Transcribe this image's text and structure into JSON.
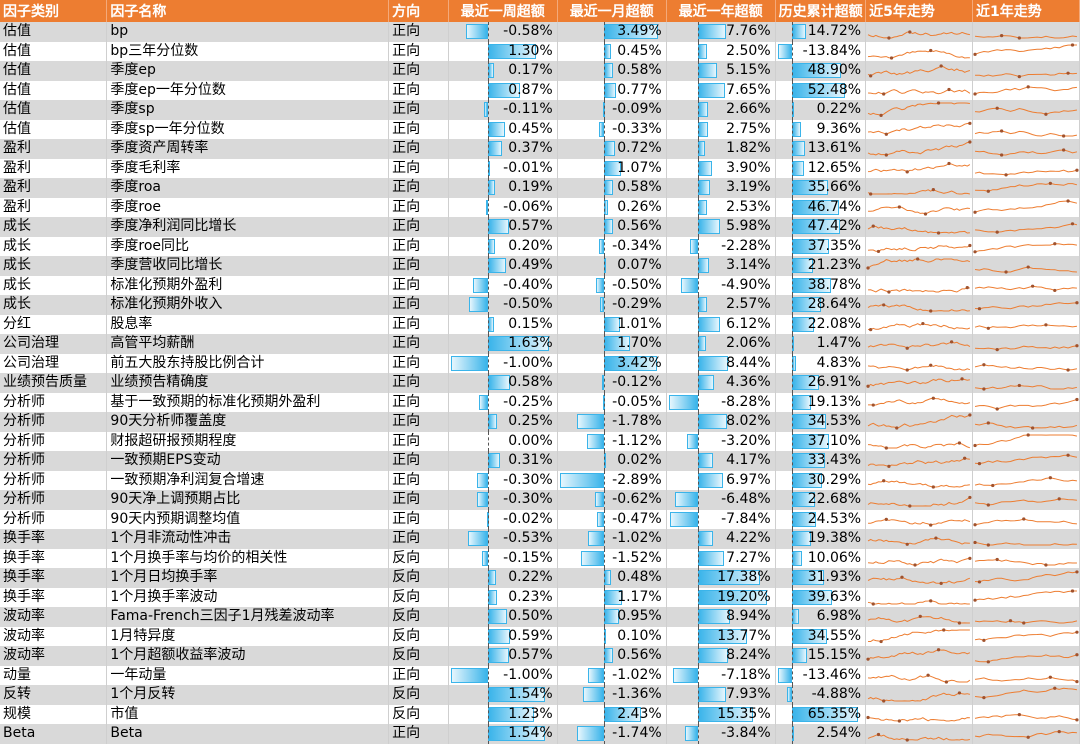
{
  "header": {
    "category": "因子类别",
    "name": "因子名称",
    "direction": "方向",
    "week": "最近一周超额",
    "month": "最近一月超额",
    "year": "最近一年超额",
    "history": "历史累计超额",
    "trend5y": "近5年走势",
    "trend1y": "近1年走势"
  },
  "colors": {
    "header_bg": "#ed7d31",
    "bar": "#3ab4ea",
    "sparkline": "#ed7d31",
    "row_stripe": "#d9d9d9"
  },
  "rows": [
    {
      "category": "估值",
      "name": "bp",
      "direction": "正向",
      "week": "-0.58%",
      "month": "3.49%",
      "year": "7.76%",
      "history": "14.72%"
    },
    {
      "category": "估值",
      "name": "bp三年分位数",
      "direction": "正向",
      "week": "1.30%",
      "month": "0.45%",
      "year": "2.50%",
      "history": "-13.84%"
    },
    {
      "category": "估值",
      "name": "季度ep",
      "direction": "正向",
      "week": "0.17%",
      "month": "0.58%",
      "year": "5.15%",
      "history": "48.90%"
    },
    {
      "category": "估值",
      "name": "季度ep一年分位数",
      "direction": "正向",
      "week": "0.87%",
      "month": "0.77%",
      "year": "7.65%",
      "history": "52.48%"
    },
    {
      "category": "估值",
      "name": "季度sp",
      "direction": "正向",
      "week": "-0.11%",
      "month": "-0.09%",
      "year": "2.66%",
      "history": "0.22%"
    },
    {
      "category": "估值",
      "name": "季度sp一年分位数",
      "direction": "正向",
      "week": "0.45%",
      "month": "-0.33%",
      "year": "2.75%",
      "history": "9.36%"
    },
    {
      "category": "盈利",
      "name": "季度资产周转率",
      "direction": "正向",
      "week": "0.37%",
      "month": "0.72%",
      "year": "1.82%",
      "history": "13.61%"
    },
    {
      "category": "盈利",
      "name": "季度毛利率",
      "direction": "正向",
      "week": "-0.01%",
      "month": "1.07%",
      "year": "3.90%",
      "history": "12.65%"
    },
    {
      "category": "盈利",
      "name": "季度roa",
      "direction": "正向",
      "week": "0.19%",
      "month": "0.58%",
      "year": "3.19%",
      "history": "35.66%"
    },
    {
      "category": "盈利",
      "name": "季度roe",
      "direction": "正向",
      "week": "-0.06%",
      "month": "0.26%",
      "year": "2.53%",
      "history": "46.74%"
    },
    {
      "category": "成长",
      "name": "季度净利润同比增长",
      "direction": "正向",
      "week": "0.57%",
      "month": "0.56%",
      "year": "5.98%",
      "history": "47.42%"
    },
    {
      "category": "成长",
      "name": "季度roe同比",
      "direction": "正向",
      "week": "0.20%",
      "month": "-0.34%",
      "year": "-2.28%",
      "history": "37.35%"
    },
    {
      "category": "成长",
      "name": "季度营收同比增长",
      "direction": "正向",
      "week": "0.49%",
      "month": "0.07%",
      "year": "3.14%",
      "history": "21.23%"
    },
    {
      "category": "成长",
      "name": "标准化预期外盈利",
      "direction": "正向",
      "week": "-0.40%",
      "month": "-0.50%",
      "year": "-4.90%",
      "history": "38.78%"
    },
    {
      "category": "成长",
      "name": "标准化预期外收入",
      "direction": "正向",
      "week": "-0.50%",
      "month": "-0.29%",
      "year": "2.57%",
      "history": "28.64%"
    },
    {
      "category": "分红",
      "name": "股息率",
      "direction": "正向",
      "week": "0.15%",
      "month": "1.01%",
      "year": "6.12%",
      "history": "22.08%"
    },
    {
      "category": "公司治理",
      "name": "高管平均薪酬",
      "direction": "正向",
      "week": "1.63%",
      "month": "1.70%",
      "year": "2.06%",
      "history": "1.47%"
    },
    {
      "category": "公司治理",
      "name": "前五大股东持股比例合计",
      "direction": "正向",
      "week": "-1.00%",
      "month": "3.42%",
      "year": "8.44%",
      "history": "4.83%"
    },
    {
      "category": "业绩预告质量",
      "name": "业绩预告精确度",
      "direction": "正向",
      "week": "0.58%",
      "month": "-0.12%",
      "year": "4.36%",
      "history": "26.91%"
    },
    {
      "category": "分析师",
      "name": "基于一致预期的标准化预期外盈利",
      "direction": "正向",
      "week": "-0.25%",
      "month": "-0.05%",
      "year": "-8.28%",
      "history": "19.13%"
    },
    {
      "category": "分析师",
      "name": "90天分析师覆盖度",
      "direction": "正向",
      "week": "0.25%",
      "month": "-1.78%",
      "year": "8.02%",
      "history": "34.53%"
    },
    {
      "category": "分析师",
      "name": "财报超研报预期程度",
      "direction": "正向",
      "week": "0.00%",
      "month": "-1.12%",
      "year": "-3.20%",
      "history": "37.10%"
    },
    {
      "category": "分析师",
      "name": "一致预期EPS变动",
      "direction": "正向",
      "week": "0.31%",
      "month": "0.02%",
      "year": "4.17%",
      "history": "33.43%"
    },
    {
      "category": "分析师",
      "name": "一致预期净利润复合增速",
      "direction": "正向",
      "week": "-0.30%",
      "month": "-2.89%",
      "year": "6.97%",
      "history": "30.29%"
    },
    {
      "category": "分析师",
      "name": "90天净上调预期占比",
      "direction": "正向",
      "week": "-0.30%",
      "month": "-0.62%",
      "year": "-6.48%",
      "history": "22.68%"
    },
    {
      "category": "分析师",
      "name": "90天内预期调整均值",
      "direction": "正向",
      "week": "-0.02%",
      "month": "-0.47%",
      "year": "-7.84%",
      "history": "24.53%"
    },
    {
      "category": "换手率",
      "name": "1个月非流动性冲击",
      "direction": "正向",
      "week": "-0.53%",
      "month": "-1.02%",
      "year": "4.22%",
      "history": "19.38%"
    },
    {
      "category": "换手率",
      "name": "1个月换手率与均价的相关性",
      "direction": "反向",
      "week": "-0.15%",
      "month": "-1.52%",
      "year": "7.27%",
      "history": "10.06%"
    },
    {
      "category": "换手率",
      "name": "1个月日均换手率",
      "direction": "反向",
      "week": "0.22%",
      "month": "0.48%",
      "year": "17.38%",
      "history": "31.93%"
    },
    {
      "category": "换手率",
      "name": "1个月换手率波动",
      "direction": "反向",
      "week": "0.23%",
      "month": "1.17%",
      "year": "19.20%",
      "history": "39.63%"
    },
    {
      "category": "波动率",
      "name": "Fama-French三因子1月残差波动率",
      "direction": "反向",
      "week": "0.50%",
      "month": "0.95%",
      "year": "8.94%",
      "history": "6.98%"
    },
    {
      "category": "波动率",
      "name": "1月特异度",
      "direction": "反向",
      "week": "0.59%",
      "month": "0.10%",
      "year": "13.77%",
      "history": "34.55%"
    },
    {
      "category": "波动率",
      "name": "1个月超额收益率波动",
      "direction": "反向",
      "week": "0.57%",
      "month": "0.56%",
      "year": "8.24%",
      "history": "15.15%"
    },
    {
      "category": "动量",
      "name": "一年动量",
      "direction": "正向",
      "week": "-1.00%",
      "month": "-1.02%",
      "year": "-7.18%",
      "history": "-13.46%"
    },
    {
      "category": "反转",
      "name": "1个月反转",
      "direction": "反向",
      "week": "1.54%",
      "month": "-1.36%",
      "year": "7.93%",
      "history": "-4.88%"
    },
    {
      "category": "规模",
      "name": "市值",
      "direction": "反向",
      "week": "1.23%",
      "month": "2.43%",
      "year": "15.35%",
      "history": "65.35%"
    },
    {
      "category": "Beta",
      "name": "Beta",
      "direction": "正向",
      "week": "1.54%",
      "month": "-1.74%",
      "year": "-3.84%",
      "history": "2.54%"
    }
  ]
}
